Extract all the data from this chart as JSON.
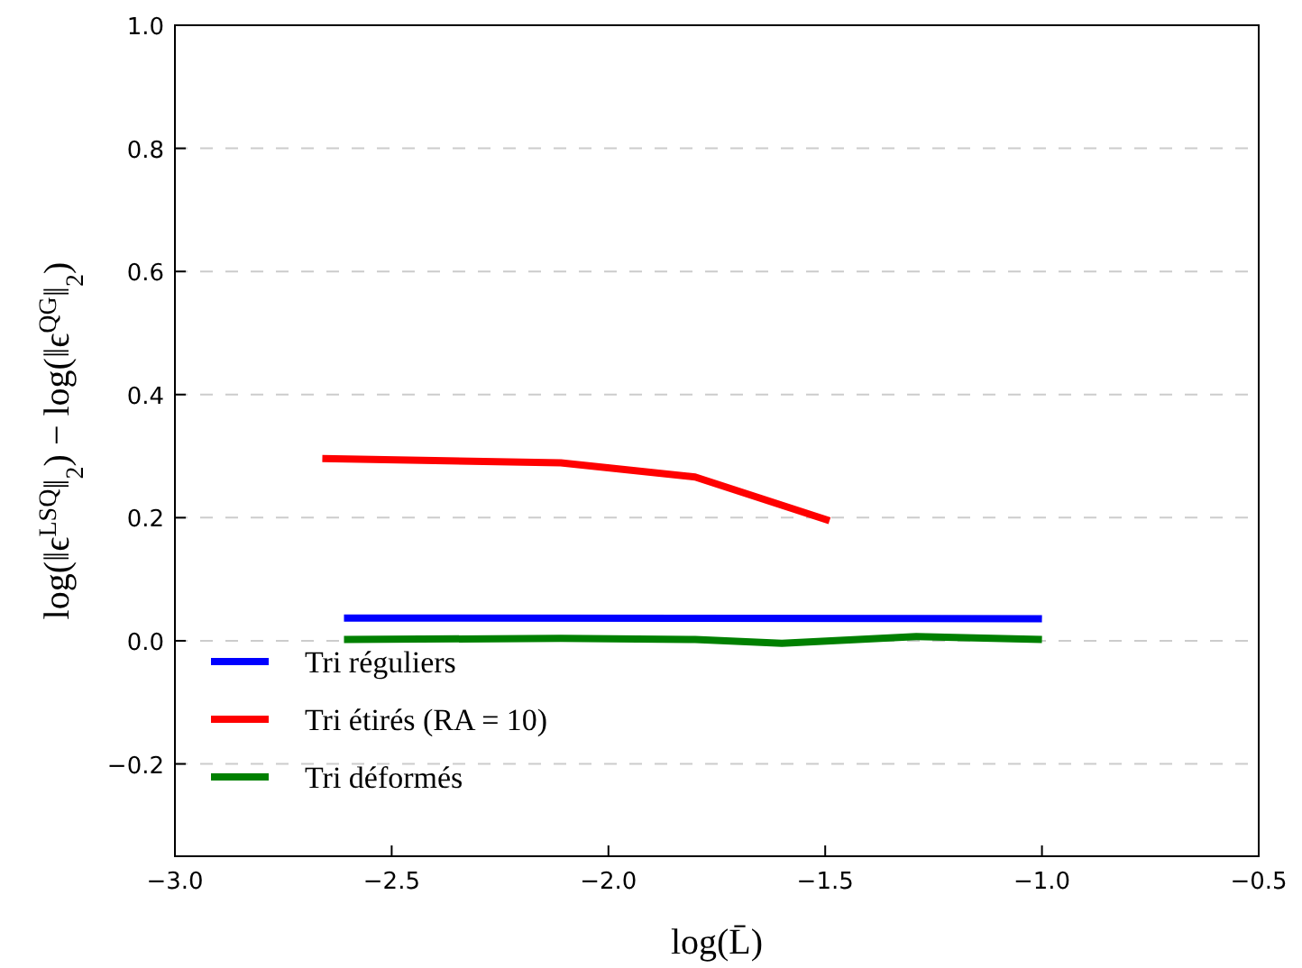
{
  "chart_data": {
    "type": "line",
    "xlabel": "log(L̄)",
    "ylabel": "log(‖ϵ$^{LSQ}$‖$_{2}$) − log(‖ϵ$^{QG}$‖$_{2}$)",
    "xlim": [
      -3.0,
      -0.5
    ],
    "xticks": [
      {
        "value": -3.0,
        "label": "−3.0"
      },
      {
        "value": -2.5,
        "label": "−2.5"
      },
      {
        "value": -2.0,
        "label": "−2.0"
      },
      {
        "value": -1.5,
        "label": "−1.5"
      },
      {
        "value": -1.0,
        "label": "−1.0"
      },
      {
        "value": -0.5,
        "label": "−0.5"
      }
    ],
    "ylim": [
      -0.35,
      1.0
    ],
    "yticks": [
      {
        "value": -0.2,
        "label": "−0.2"
      },
      {
        "value": 0,
        "label": "0.0"
      },
      {
        "value": 0.2,
        "label": "0.2"
      },
      {
        "value": 0.4,
        "label": "0.4"
      },
      {
        "value": 0.6,
        "label": "0.6"
      },
      {
        "value": 0.8,
        "label": "0.8"
      },
      {
        "value": 1.0,
        "label": "1.0"
      }
    ],
    "grid": "y",
    "legend": "bottom left",
    "marker": "none",
    "line_style": "solid",
    "series": [
      {
        "name": "Tri réguliers",
        "color": "#0000ff",
        "x": [
          -2.61,
          -1.0
        ],
        "values": [
          0.037,
          0.036
        ]
      },
      {
        "name": "Tri étirés (RA = 10)",
        "color": "#ff0000",
        "x": [
          -2.66,
          -2.11,
          -1.8,
          -1.49
        ],
        "values": [
          0.296,
          0.289,
          0.266,
          0.195
        ]
      },
      {
        "name": "Tri déformés",
        "color": "#008000",
        "x": [
          -2.61,
          -2.11,
          -1.8,
          -1.6,
          -1.29,
          -1.0
        ],
        "values": [
          0.002,
          0.004,
          0.002,
          -0.004,
          0.007,
          0.002
        ]
      }
    ]
  }
}
